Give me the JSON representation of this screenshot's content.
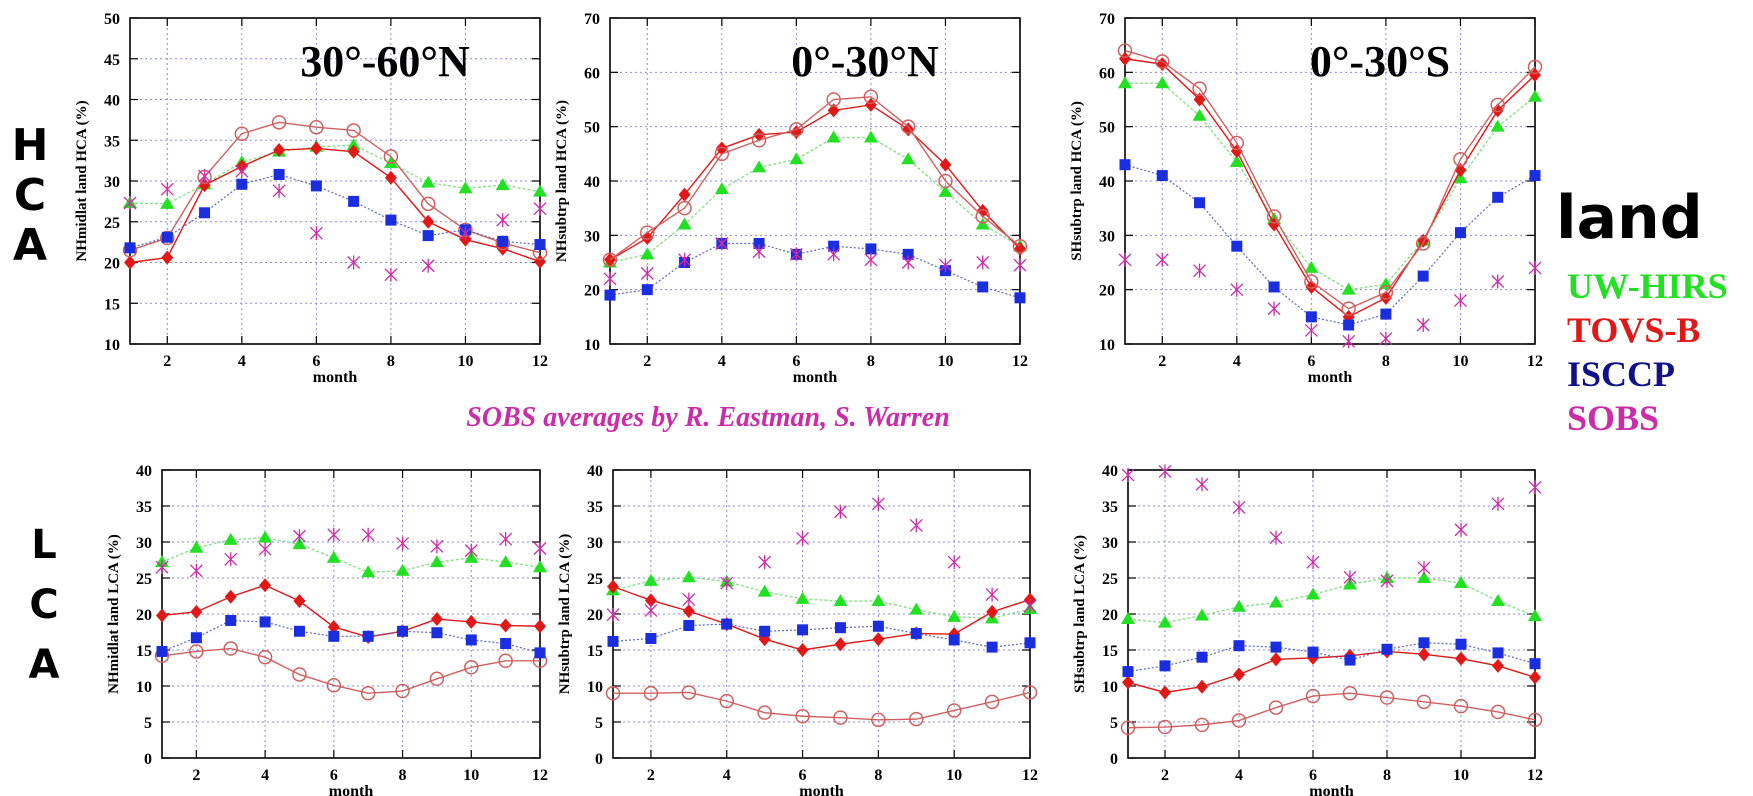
{
  "side_labels": {
    "hca": "HCA",
    "lca": "LCA",
    "surface": "land"
  },
  "legend": [
    {
      "name": "UW-HIRS",
      "color": "#22e022"
    },
    {
      "name": "TOVS-B",
      "color": "#e01818"
    },
    {
      "name": "ISCCP",
      "color": "#10108a"
    },
    {
      "name": "SOBS",
      "color": "#cc2ca8"
    }
  ],
  "caption": "SOBS averages by R. Eastman, S. Warren",
  "series_style": {
    "UW-HIRS": {
      "color": "#22e022",
      "line": "#8be08b",
      "marker": "triangle"
    },
    "TOVS-B": {
      "color": "#e01818",
      "line": "#e01818",
      "marker": "diamond"
    },
    "ISCCP": {
      "color": "#1a2ee0",
      "line": "#5a66c8",
      "marker": "square"
    },
    "SOBS": {
      "color": "#cc2ca8",
      "line": "",
      "marker": "asterisk"
    },
    "TOVS-B (open circle)": {
      "color": "#d06060",
      "line": "#d06060",
      "marker": "circle"
    }
  },
  "chart_data": [
    {
      "type": "line",
      "title": "30°-60°N",
      "xlabel": "month",
      "ylabel": "NHmidlat land HCA (%)",
      "xlim": [
        1,
        12
      ],
      "ylim": [
        10,
        50
      ],
      "xticks": [
        "2",
        "4",
        "6",
        "8",
        "10",
        "12"
      ],
      "yticks": [
        "10",
        "15",
        "20",
        "25",
        "30",
        "35",
        "40",
        "45",
        "50"
      ],
      "grid": true,
      "x": [
        1,
        2,
        3,
        4,
        5,
        6,
        7,
        8,
        9,
        10,
        11,
        12
      ],
      "series": [
        {
          "style": "UW-HIRS",
          "values": [
            27.3,
            27.2,
            29.6,
            32.3,
            33.6,
            34.2,
            34.4,
            32.2,
            29.8,
            29.1,
            29.5,
            28.7
          ]
        },
        {
          "style": "TOVS-B",
          "values": [
            20.0,
            20.6,
            29.5,
            31.8,
            33.8,
            34.0,
            33.6,
            30.4,
            25.0,
            22.8,
            21.7,
            20.1
          ]
        },
        {
          "style": "TOVS-B (open circle)",
          "values": [
            21.5,
            23.0,
            30.5,
            35.8,
            37.2,
            36.6,
            36.2,
            33.0,
            27.2,
            24.0,
            22.4,
            21.2
          ]
        },
        {
          "style": "ISCCP",
          "values": [
            21.8,
            23.1,
            26.1,
            29.6,
            30.8,
            29.4,
            27.5,
            25.2,
            23.3,
            24.0,
            22.6,
            22.2
          ]
        },
        {
          "style": "SOBS",
          "values": [
            27.3,
            29.0,
            30.6,
            31.2,
            28.8,
            23.6,
            20.0,
            18.5,
            19.6,
            23.6,
            25.2,
            26.6
          ]
        }
      ]
    },
    {
      "type": "line",
      "title": "0°-30°N",
      "xlabel": "month",
      "ylabel": "NHsubtrp land HCA (%)",
      "xlim": [
        1,
        12
      ],
      "ylim": [
        10,
        70
      ],
      "xticks": [
        "2",
        "4",
        "6",
        "8",
        "10",
        "12"
      ],
      "yticks": [
        "10",
        "20",
        "30",
        "40",
        "50",
        "60",
        "70"
      ],
      "grid": true,
      "x": [
        1,
        2,
        3,
        4,
        5,
        6,
        7,
        8,
        9,
        10,
        11,
        12
      ],
      "series": [
        {
          "style": "UW-HIRS",
          "values": [
            25.0,
            26.5,
            32.0,
            38.5,
            42.5,
            44.0,
            48.0,
            48.0,
            44.0,
            38.0,
            32.0,
            28.0
          ]
        },
        {
          "style": "TOVS-B",
          "values": [
            25.5,
            29.5,
            37.5,
            46.0,
            48.5,
            49.0,
            53.0,
            54.0,
            49.5,
            43.0,
            34.5,
            27.5
          ]
        },
        {
          "style": "TOVS-B (open circle)",
          "values": [
            25.5,
            30.5,
            35.0,
            45.0,
            47.5,
            49.5,
            55.0,
            55.5,
            50.0,
            40.0,
            33.5,
            28.0
          ]
        },
        {
          "style": "ISCCP",
          "values": [
            19.0,
            20.0,
            25.0,
            28.5,
            28.5,
            26.5,
            28.0,
            27.5,
            26.5,
            23.5,
            20.5,
            18.5
          ]
        },
        {
          "style": "SOBS",
          "values": [
            22.0,
            23.0,
            25.5,
            28.5,
            27.0,
            26.5,
            26.5,
            25.5,
            25.0,
            24.5,
            25.0,
            24.5
          ]
        }
      ]
    },
    {
      "type": "line",
      "title": "0°-30°S",
      "xlabel": "month",
      "ylabel": "SHsubtrp land HCA (%)",
      "xlim": [
        1,
        12
      ],
      "ylim": [
        10,
        70
      ],
      "xticks": [
        "2",
        "4",
        "6",
        "8",
        "10",
        "12"
      ],
      "yticks": [
        "10",
        "20",
        "30",
        "40",
        "50",
        "60",
        "70"
      ],
      "grid": true,
      "x": [
        1,
        2,
        3,
        4,
        5,
        6,
        7,
        8,
        9,
        10,
        11,
        12
      ],
      "series": [
        {
          "style": "UW-HIRS",
          "values": [
            58.0,
            58.0,
            52.0,
            43.5,
            33.0,
            24.0,
            20.0,
            21.0,
            29.0,
            40.5,
            50.0,
            55.5
          ]
        },
        {
          "style": "TOVS-B",
          "values": [
            62.5,
            61.5,
            55.0,
            45.5,
            32.0,
            20.5,
            15.0,
            18.5,
            29.0,
            42.0,
            53.0,
            59.5
          ]
        },
        {
          "style": "TOVS-B (open circle)",
          "values": [
            64.0,
            62.0,
            57.0,
            47.0,
            33.5,
            21.5,
            16.5,
            19.5,
            28.5,
            44.0,
            54.0,
            61.0
          ]
        },
        {
          "style": "ISCCP",
          "values": [
            43.0,
            41.0,
            36.0,
            28.0,
            20.5,
            15.0,
            13.5,
            15.5,
            22.5,
            30.5,
            37.0,
            41.0
          ]
        },
        {
          "style": "SOBS",
          "values": [
            25.5,
            25.5,
            23.5,
            20.0,
            16.5,
            12.5,
            10.5,
            11.0,
            13.5,
            18.0,
            21.5,
            24.0
          ]
        }
      ]
    },
    {
      "type": "line",
      "title": "",
      "xlabel": "month",
      "ylabel": "NHmidlat land LCA (%)",
      "xlim": [
        1,
        12
      ],
      "ylim": [
        0,
        40
      ],
      "xticks": [
        "2",
        "4",
        "6",
        "8",
        "10",
        "12"
      ],
      "yticks": [
        "0",
        "5",
        "10",
        "15",
        "20",
        "25",
        "30",
        "35",
        "40"
      ],
      "grid": true,
      "x": [
        1,
        2,
        3,
        4,
        5,
        6,
        7,
        8,
        9,
        10,
        11,
        12
      ],
      "series": [
        {
          "style": "UW-HIRS",
          "values": [
            27.2,
            29.2,
            30.3,
            30.6,
            29.7,
            27.8,
            25.8,
            26.0,
            27.2,
            27.8,
            27.2,
            26.5
          ]
        },
        {
          "style": "TOVS-B",
          "values": [
            19.8,
            20.3,
            22.4,
            24.0,
            21.8,
            18.2,
            16.8,
            17.6,
            19.3,
            18.9,
            18.4,
            18.3
          ]
        },
        {
          "style": "TOVS-B (open circle)",
          "values": [
            14.2,
            14.8,
            15.2,
            14.0,
            11.6,
            10.1,
            9.0,
            9.3,
            11.0,
            12.6,
            13.5,
            13.5
          ]
        },
        {
          "style": "ISCCP",
          "values": [
            14.8,
            16.7,
            19.1,
            18.9,
            17.6,
            16.9,
            16.9,
            17.6,
            17.4,
            16.4,
            15.9,
            14.6
          ]
        },
        {
          "style": "SOBS",
          "values": [
            26.5,
            26.0,
            27.6,
            29.0,
            30.8,
            31.0,
            31.0,
            29.8,
            29.4,
            28.8,
            30.4,
            29.1
          ]
        }
      ]
    },
    {
      "type": "line",
      "title": "",
      "xlabel": "month",
      "ylabel": "NHsubtrp land LCA (%)",
      "xlim": [
        1,
        12
      ],
      "ylim": [
        0,
        40
      ],
      "xticks": [
        "2",
        "4",
        "6",
        "8",
        "10",
        "12"
      ],
      "yticks": [
        "0",
        "5",
        "10",
        "15",
        "20",
        "25",
        "30",
        "35",
        "40"
      ],
      "grid": true,
      "x": [
        1,
        2,
        3,
        4,
        5,
        6,
        7,
        8,
        9,
        10,
        11,
        12
      ],
      "series": [
        {
          "style": "UW-HIRS",
          "values": [
            23.3,
            24.6,
            25.1,
            24.5,
            23.1,
            22.1,
            21.8,
            21.8,
            20.6,
            19.6,
            19.4,
            20.7
          ]
        },
        {
          "style": "TOVS-B",
          "values": [
            23.8,
            21.9,
            20.4,
            18.6,
            16.5,
            15.0,
            15.8,
            16.5,
            17.3,
            17.2,
            20.3,
            22.0
          ]
        },
        {
          "style": "TOVS-B (open circle)",
          "values": [
            9.0,
            9.0,
            9.1,
            7.9,
            6.3,
            5.8,
            5.6,
            5.3,
            5.4,
            6.6,
            7.8,
            9.1
          ]
        },
        {
          "style": "ISCCP",
          "values": [
            16.2,
            16.6,
            18.4,
            18.6,
            17.6,
            17.8,
            18.1,
            18.3,
            17.3,
            16.4,
            15.4,
            16.0
          ]
        },
        {
          "style": "SOBS",
          "values": [
            19.9,
            20.5,
            22.0,
            24.3,
            27.2,
            30.5,
            34.2,
            35.3,
            32.3,
            27.2,
            22.7,
            21.1
          ]
        }
      ]
    },
    {
      "type": "line",
      "title": "",
      "xlabel": "month",
      "ylabel": "SHsubtrp land LCA (%)",
      "xlim": [
        1,
        12
      ],
      "ylim": [
        0,
        40
      ],
      "xticks": [
        "2",
        "4",
        "6",
        "8",
        "10",
        "12"
      ],
      "yticks": [
        "0",
        "5",
        "10",
        "15",
        "20",
        "25",
        "30",
        "35",
        "40"
      ],
      "grid": true,
      "x": [
        1,
        2,
        3,
        4,
        5,
        6,
        7,
        8,
        9,
        10,
        11,
        12
      ],
      "series": [
        {
          "style": "UW-HIRS",
          "values": [
            19.3,
            18.8,
            19.8,
            21.0,
            21.6,
            22.7,
            24.1,
            25.0,
            25.0,
            24.3,
            21.8,
            19.7
          ]
        },
        {
          "style": "TOVS-B",
          "values": [
            10.5,
            9.1,
            9.9,
            11.6,
            13.7,
            13.9,
            14.2,
            14.8,
            14.4,
            13.8,
            12.8,
            11.2
          ]
        },
        {
          "style": "TOVS-B (open circle)",
          "values": [
            4.2,
            4.3,
            4.6,
            5.2,
            7.0,
            8.6,
            9.0,
            8.4,
            7.8,
            7.2,
            6.4,
            5.3
          ]
        },
        {
          "style": "ISCCP",
          "values": [
            12.0,
            12.8,
            14.0,
            15.6,
            15.4,
            14.7,
            13.6,
            15.1,
            16.0,
            15.8,
            14.6,
            13.1
          ]
        },
        {
          "style": "SOBS",
          "values": [
            39.3,
            39.8,
            38.0,
            34.8,
            30.6,
            27.2,
            25.1,
            24.6,
            26.4,
            31.7,
            35.3,
            37.6
          ]
        }
      ]
    }
  ]
}
